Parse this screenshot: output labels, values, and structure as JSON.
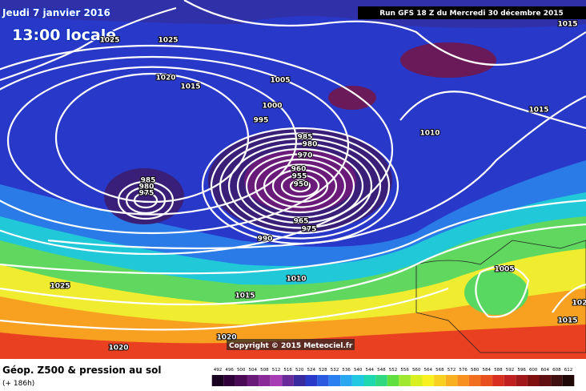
{
  "header": {
    "date": "Jeudi 7 janvier 2016",
    "time": "13:00 locale",
    "run": "Run GFS 18 Z du Mercredi 30 décembre 2015",
    "copyright": "Copyright © 2015 Meteociel.fr"
  },
  "legend": {
    "title": "Géop. Z500 & pression au sol",
    "lead": "(+ 186h)",
    "scale": [
      492,
      496,
      500,
      504,
      508,
      512,
      516,
      520,
      524,
      528,
      532,
      536,
      540,
      544,
      548,
      552,
      556,
      560,
      564,
      568,
      572,
      576,
      580,
      584,
      588,
      592,
      596,
      600,
      604,
      608,
      612
    ],
    "colors": [
      "#1a0020",
      "#30003a",
      "#4a0a55",
      "#6a1a78",
      "#8a2a98",
      "#a83cb4",
      "#6a2a9a",
      "#3a2aa0",
      "#2a3ac8",
      "#2a5ae0",
      "#2a80f0",
      "#28a8f0",
      "#20c8e0",
      "#20d8b0",
      "#30d880",
      "#60e040",
      "#a0e830",
      "#d8f020",
      "#f8f020",
      "#f8d020",
      "#f8b020",
      "#f89020",
      "#f07020",
      "#e85020",
      "#d83020",
      "#c02020",
      "#a01818",
      "#801010",
      "#601010",
      "#401010",
      "#200808"
    ]
  },
  "isobar_labels": [
    1025,
    1025,
    1020,
    1015,
    1005,
    1000,
    995,
    985,
    980,
    970,
    960,
    955,
    950,
    965,
    975,
    990,
    985,
    980,
    975,
    1010,
    1010,
    1005,
    1015,
    1015,
    1025,
    1015,
    1020,
    1020,
    1015,
    102
  ]
}
